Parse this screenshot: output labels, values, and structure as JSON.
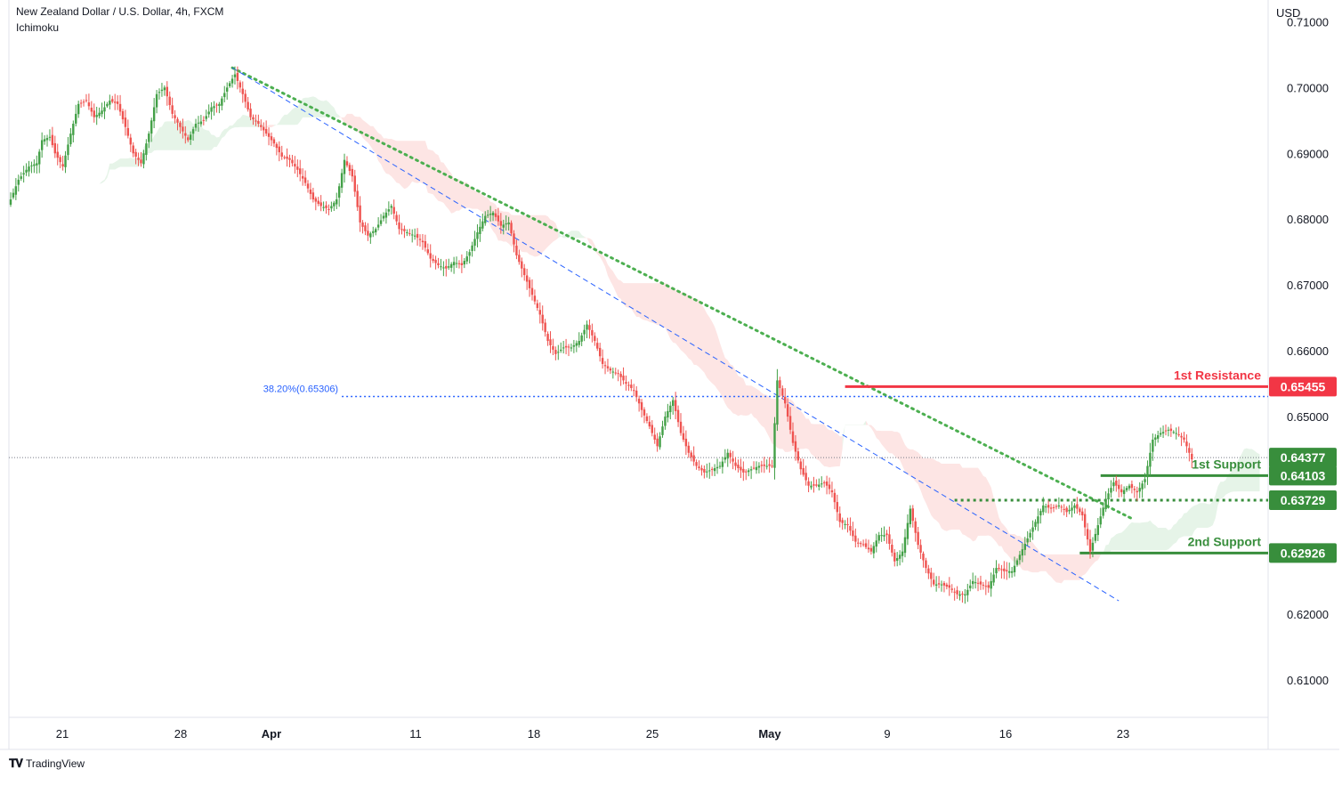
{
  "header": {
    "symbol": "New Zealand Dollar / U.S. Dollar, 4h, FXCM",
    "indicator": "Ichimoku"
  },
  "brand": {
    "name": "TradingView",
    "icon": "tradingview-logo-icon"
  },
  "chart_data": {
    "type": "candlestick",
    "currency": "USD",
    "y_axis": {
      "ticks": [
        0.71,
        0.7,
        0.69,
        0.68,
        0.67,
        0.66,
        0.65,
        0.62,
        0.61
      ],
      "labels": [
        "0.71000",
        "0.70000",
        "0.69000",
        "0.68000",
        "0.67000",
        "0.66000",
        "0.65000",
        "0.62000",
        "0.61000"
      ],
      "ylim": [
        0.6043,
        0.7133
      ]
    },
    "x_axis": {
      "labels": [
        "21",
        "28",
        "Apr",
        "11",
        "18",
        "25",
        "May",
        "9",
        "16",
        "23"
      ]
    },
    "current_price": 0.64377,
    "current_price_label": "0.64377",
    "colors": {
      "up": "#26a69a",
      "up_body": "#43a047",
      "down": "#ef5350",
      "support": "#388e3c",
      "resistance": "#f23645",
      "fib": "#2962ff",
      "trend": "#4caf50",
      "cloud_bull": "#e6f4e8",
      "cloud_bear": "#fde5e4"
    },
    "levels": [
      {
        "name": "1st Resistance",
        "label": "1st Resistance",
        "price": 0.65455,
        "price_label": "0.65455",
        "kind": "resistance"
      },
      {
        "name": "1st Support",
        "label": "1st Support",
        "price": 0.64103,
        "price_label": "0.64103",
        "kind": "support"
      },
      {
        "name": "",
        "label": "",
        "price": 0.63729,
        "price_label": "0.63729",
        "kind": "support-dotted"
      },
      {
        "name": "2nd Support",
        "label": "2nd Support",
        "price": 0.62926,
        "price_label": "0.62926",
        "kind": "support"
      }
    ],
    "fib_level": {
      "label": "38.20%(0.65306)",
      "price": 0.65306
    },
    "price_path": [
      [
        2,
        0.683
      ],
      [
        5,
        0.686
      ],
      [
        9,
        0.688
      ],
      [
        12,
        0.6885
      ],
      [
        14,
        0.692
      ],
      [
        17,
        0.6925
      ],
      [
        19,
        0.69
      ],
      [
        22,
        0.688
      ],
      [
        25,
        0.693
      ],
      [
        28,
        0.6975
      ],
      [
        31,
        0.698
      ],
      [
        34,
        0.6955
      ],
      [
        37,
        0.6965
      ],
      [
        40,
        0.698
      ],
      [
        43,
        0.6975
      ],
      [
        46,
        0.694
      ],
      [
        49,
        0.69
      ],
      [
        52,
        0.6885
      ],
      [
        55,
        0.693
      ],
      [
        58,
        0.699
      ],
      [
        61,
        0.7
      ],
      [
        64,
        0.696
      ],
      [
        67,
        0.694
      ],
      [
        70,
        0.692
      ],
      [
        73,
        0.6945
      ],
      [
        76,
        0.695
      ],
      [
        79,
        0.697
      ],
      [
        82,
        0.6975
      ],
      [
        85,
        0.7
      ],
      [
        88,
        0.702
      ],
      [
        91,
        0.699
      ],
      [
        94,
        0.6955
      ],
      [
        97,
        0.6945
      ],
      [
        100,
        0.693
      ],
      [
        103,
        0.6915
      ],
      [
        106,
        0.6895
      ],
      [
        109,
        0.689
      ],
      [
        112,
        0.6875
      ],
      [
        115,
        0.6855
      ],
      [
        118,
        0.683
      ],
      [
        121,
        0.682
      ],
      [
        124,
        0.6815
      ],
      [
        127,
        0.683
      ],
      [
        130,
        0.689
      ],
      [
        133,
        0.6865
      ],
      [
        136,
        0.6795
      ],
      [
        139,
        0.6775
      ],
      [
        142,
        0.6785
      ],
      [
        145,
        0.6805
      ],
      [
        148,
        0.682
      ],
      [
        151,
        0.6785
      ],
      [
        154,
        0.678
      ],
      [
        157,
        0.6775
      ],
      [
        160,
        0.6765
      ],
      [
        163,
        0.674
      ],
      [
        166,
        0.673
      ],
      [
        169,
        0.6725
      ],
      [
        172,
        0.6735
      ],
      [
        175,
        0.673
      ],
      [
        178,
        0.675
      ],
      [
        181,
        0.678
      ],
      [
        184,
        0.6805
      ],
      [
        187,
        0.681
      ],
      [
        190,
        0.679
      ],
      [
        193,
        0.6795
      ],
      [
        196,
        0.6745
      ],
      [
        199,
        0.6715
      ],
      [
        202,
        0.6685
      ],
      [
        205,
        0.6655
      ],
      [
        208,
        0.6615
      ],
      [
        211,
        0.6595
      ],
      [
        214,
        0.6605
      ],
      [
        217,
        0.6605
      ],
      [
        220,
        0.6615
      ],
      [
        223,
        0.664
      ],
      [
        226,
        0.6615
      ],
      [
        229,
        0.658
      ],
      [
        232,
        0.657
      ],
      [
        235,
        0.6565
      ],
      [
        238,
        0.655
      ],
      [
        241,
        0.654
      ],
      [
        244,
        0.651
      ],
      [
        247,
        0.6485
      ],
      [
        250,
        0.6455
      ],
      [
        253,
        0.65
      ],
      [
        256,
        0.6525
      ],
      [
        259,
        0.6475
      ],
      [
        262,
        0.6445
      ],
      [
        265,
        0.6425
      ],
      [
        268,
        0.6415
      ],
      [
        271,
        0.642
      ],
      [
        274,
        0.6425
      ],
      [
        277,
        0.6445
      ],
      [
        280,
        0.6425
      ],
      [
        283,
        0.6415
      ],
      [
        286,
        0.642
      ],
      [
        289,
        0.6425
      ],
      [
        292,
        0.6425
      ],
      [
        294,
        0.6425
      ],
      [
        296,
        0.6555
      ],
      [
        299,
        0.652
      ],
      [
        302,
        0.646
      ],
      [
        305,
        0.642
      ],
      [
        308,
        0.6395
      ],
      [
        311,
        0.6395
      ],
      [
        314,
        0.64
      ],
      [
        317,
        0.6385
      ],
      [
        320,
        0.634
      ],
      [
        323,
        0.6335
      ],
      [
        326,
        0.631
      ],
      [
        329,
        0.6305
      ],
      [
        332,
        0.6295
      ],
      [
        335,
        0.632
      ],
      [
        338,
        0.632
      ],
      [
        341,
        0.628
      ],
      [
        344,
        0.6295
      ],
      [
        347,
        0.636
      ],
      [
        350,
        0.6305
      ],
      [
        353,
        0.627
      ],
      [
        356,
        0.6245
      ],
      [
        359,
        0.6245
      ],
      [
        362,
        0.624
      ],
      [
        365,
        0.623
      ],
      [
        368,
        0.623
      ],
      [
        371,
        0.625
      ],
      [
        374,
        0.6245
      ],
      [
        377,
        0.624
      ],
      [
        380,
        0.627
      ],
      [
        383,
        0.6265
      ],
      [
        386,
        0.6265
      ],
      [
        389,
        0.629
      ],
      [
        392,
        0.6315
      ],
      [
        395,
        0.634
      ],
      [
        398,
        0.6365
      ],
      [
        401,
        0.636
      ],
      [
        404,
        0.6365
      ],
      [
        407,
        0.6355
      ],
      [
        410,
        0.6365
      ],
      [
        413,
        0.635
      ],
      [
        416,
        0.6295
      ],
      [
        419,
        0.6335
      ],
      [
        422,
        0.6375
      ],
      [
        425,
        0.64
      ],
      [
        428,
        0.6385
      ],
      [
        431,
        0.6395
      ],
      [
        434,
        0.6385
      ],
      [
        437,
        0.6405
      ],
      [
        440,
        0.6465
      ],
      [
        443,
        0.6475
      ],
      [
        446,
        0.648
      ],
      [
        449,
        0.6475
      ],
      [
        452,
        0.6465
      ],
      [
        455,
        0.6435
      ]
    ]
  }
}
